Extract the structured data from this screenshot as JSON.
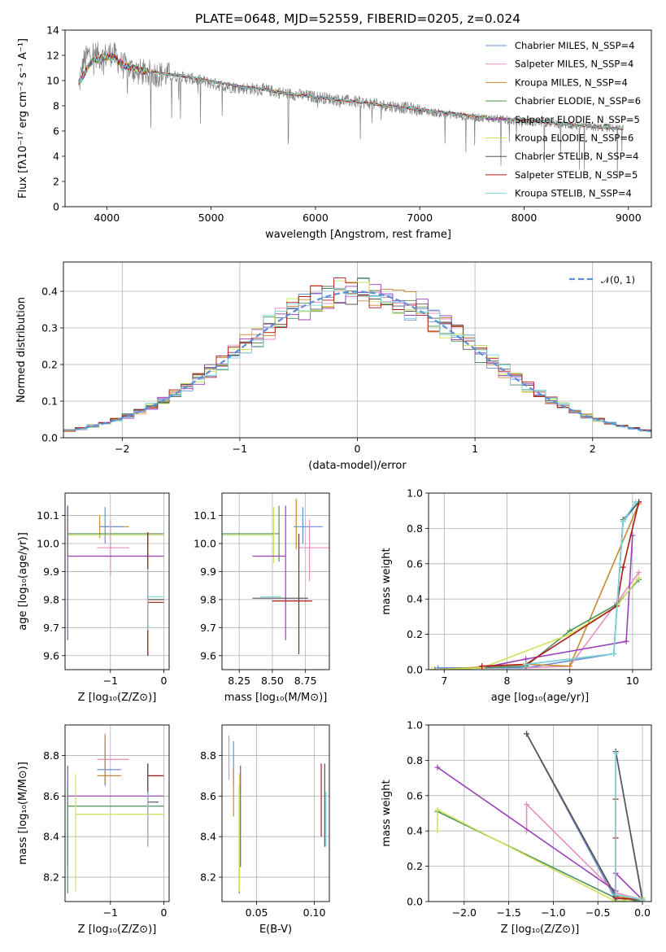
{
  "figure": {
    "title": "PLATE=0648, MJD=52559, FIBERID=0205, z=0.024"
  },
  "chart_data": [
    {
      "id": "spectrum",
      "type": "line",
      "xlabel": "wavelength [Angstrom, rest frame]",
      "ylabel": "Flux [fλ10⁻¹⁷ erg cm⁻² s⁻¹ A⁻¹]",
      "xlim": [
        3600,
        9220
      ],
      "ylim": [
        0,
        14
      ],
      "xticks": [
        4000,
        5000,
        6000,
        7000,
        8000,
        9000
      ],
      "yticks": [
        0,
        2,
        4,
        6,
        8,
        10,
        12,
        14
      ],
      "grid": false,
      "legend_position": "top-right",
      "data_trace": {
        "color": "#808080",
        "x": [
          3730,
          3780,
          3850,
          3950,
          4050,
          4150,
          4300,
          4500,
          4700,
          4900,
          5100,
          5300,
          5500,
          5700,
          5900,
          6100,
          6300,
          6500,
          6700,
          6900,
          7100,
          7300,
          7500,
          7700,
          7900,
          8100,
          8300,
          8500,
          8700,
          8900
        ],
        "y": [
          9.5,
          11.5,
          12.3,
          11.8,
          12.2,
          11.2,
          10.7,
          10.5,
          10.3,
          10.0,
          9.6,
          9.4,
          9.3,
          9.0,
          8.8,
          8.6,
          8.4,
          8.2,
          8.0,
          7.8,
          7.5,
          7.3,
          7.1,
          7.0,
          6.8,
          6.7,
          6.6,
          6.4,
          6.3,
          6.2
        ]
      },
      "series": [
        {
          "name": "Chabrier MILES, N_SSP=4",
          "color": "#6a8fd8"
        },
        {
          "name": "Salpeter MILES, N_SSP=4",
          "color": "#e68fbf"
        },
        {
          "name": "Kroupa MILES, N_SSP=4",
          "color": "#c88a30"
        },
        {
          "name": "Chabrier ELODIE, N_SSP=6",
          "color": "#4f8f5a"
        },
        {
          "name": "Salpeter ELODIE, N_SSP=5",
          "color": "#9b3fb8"
        },
        {
          "name": "Kroupa ELODIE, N_SSP=6",
          "color": "#cfe35a"
        },
        {
          "name": "Chabrier STELIB, N_SSP=4",
          "color": "#555555"
        },
        {
          "name": "Salpeter STELIB, N_SSP=5",
          "color": "#b01818"
        },
        {
          "name": "Kroupa STELIB, N_SSP=4",
          "color": "#7fd8e0"
        }
      ],
      "model_x": [
        3730,
        3850,
        3950,
        4050,
        4150,
        4300,
        4500,
        4700,
        4900,
        5100,
        5300,
        5500,
        5700,
        5900,
        6100,
        6300,
        6500,
        6700,
        6900,
        7100,
        7300,
        7500,
        7700,
        7900,
        8100,
        8300,
        8500,
        8700,
        8900
      ],
      "model_y": [
        9.8,
        11.5,
        11.8,
        11.9,
        11.3,
        10.8,
        10.6,
        10.4,
        10.1,
        9.8,
        9.5,
        9.3,
        9.0,
        8.8,
        8.6,
        8.4,
        8.2,
        8.0,
        7.8,
        7.6,
        7.4,
        7.2,
        7.0,
        6.9,
        6.8,
        6.6,
        6.5,
        6.3,
        6.2
      ]
    },
    {
      "id": "residuals",
      "type": "line",
      "xlabel": "(data-model)/error",
      "ylabel": "Normed distribution",
      "xlim": [
        -2.5,
        2.5
      ],
      "ylim": [
        0,
        0.48
      ],
      "xticks": [
        -2,
        -1,
        0,
        1,
        2
      ],
      "yticks": [
        0.0,
        0.1,
        0.2,
        0.3,
        0.4
      ],
      "grid": true,
      "legend_position": "top-right",
      "reference": {
        "name": "𝒩(0, 1)",
        "color": "#5b8fd6"
      },
      "bin_width": 0.1
    },
    {
      "id": "age-vs-Z",
      "type": "scatter",
      "xlabel": "Z [log₁₀(Z/Z⊙)]",
      "ylabel": "age  [log₁₀(age/yr)]",
      "xlim": [
        -1.85,
        0.1
      ],
      "ylim": [
        9.55,
        10.18
      ],
      "xticks": [
        -1,
        0
      ],
      "yticks": [
        9.6,
        9.7,
        9.8,
        9.9,
        10.0,
        10.1
      ],
      "grid": true,
      "points": [
        {
          "x": -1.2,
          "y": 10.06,
          "xerr": [
            0.0,
            0.55
          ],
          "yerr": [
            0.04,
            0.04
          ],
          "color": "#c88a30"
        },
        {
          "x": -1.1,
          "y": 10.06,
          "xerr": [
            0.1,
            0.35
          ],
          "yerr": [
            0.06,
            0.07
          ],
          "color": "#6a8fd8"
        },
        {
          "x": -1.8,
          "y": 10.035,
          "xerr": [
            0.0,
            1.8
          ],
          "yerr": [
            0.08,
            0.1
          ],
          "color": "#4f8f5a"
        },
        {
          "x": -1.8,
          "y": 10.03,
          "xerr": [
            0.0,
            1.8
          ],
          "yerr": [
            0.07,
            0.07
          ],
          "color": "#cfe35a"
        },
        {
          "x": -1.0,
          "y": 9.985,
          "xerr": [
            0.25,
            0.35
          ],
          "yerr": [
            0.1,
            0.1
          ],
          "color": "#e68fbf"
        },
        {
          "x": -1.8,
          "y": 9.955,
          "xerr": [
            0.0,
            1.8
          ],
          "yerr": [
            0.3,
            0.18
          ],
          "color": "#9b3fb8"
        },
        {
          "x": -0.3,
          "y": 9.8,
          "xerr": [
            0.0,
            0.3
          ],
          "yerr": [
            0.2,
            0.24
          ],
          "color": "#555555"
        },
        {
          "x": -0.3,
          "y": 9.79,
          "xerr": [
            0.0,
            0.3
          ],
          "yerr": [
            0.19,
            0.25
          ],
          "color": "#b01818"
        },
        {
          "x": -0.3,
          "y": 9.81,
          "xerr": [
            0.0,
            0.3
          ],
          "yerr": [
            0.12,
            0.1
          ],
          "color": "#7fd8e0"
        }
      ]
    },
    {
      "id": "age-vs-mass",
      "type": "scatter",
      "xlabel": "mass [log₁₀(M/M⊙)]",
      "ylabel": "",
      "xlim": [
        8.12,
        8.93
      ],
      "ylim": [
        9.55,
        10.18
      ],
      "xticks": [
        8.25,
        8.5,
        8.75
      ],
      "yticks": [
        9.6,
        9.7,
        9.8,
        9.9,
        10.0,
        10.1
      ],
      "grid": true,
      "points": [
        {
          "x": 8.68,
          "y": 10.06,
          "xerr": [
            0.0,
            0.0
          ],
          "yerr": [
            0.08,
            0.1
          ],
          "color": "#c88a30"
        },
        {
          "x": 8.73,
          "y": 10.06,
          "xerr": [
            0.07,
            0.15
          ],
          "yerr": [
            0.06,
            0.07
          ],
          "color": "#6a8fd8"
        },
        {
          "x": 8.55,
          "y": 10.035,
          "xerr": [
            0.45,
            0.0
          ],
          "yerr": [
            0.1,
            0.1
          ],
          "color": "#4f8f5a"
        },
        {
          "x": 8.51,
          "y": 10.03,
          "xerr": [
            0.4,
            0.0
          ],
          "yerr": [
            0.1,
            0.1
          ],
          "color": "#cfe35a"
        },
        {
          "x": 8.78,
          "y": 9.985,
          "xerr": [
            0.08,
            0.15
          ],
          "yerr": [
            0.12,
            0.1
          ],
          "color": "#e68fbf"
        },
        {
          "x": 8.6,
          "y": 9.955,
          "xerr": [
            0.25,
            0.0
          ],
          "yerr": [
            0.3,
            0.18
          ],
          "color": "#9b3fb8"
        },
        {
          "x": 8.57,
          "y": 9.805,
          "xerr": [
            0.22,
            0.2
          ],
          "yerr": [
            0.0,
            0.0
          ],
          "color": "#555555"
        },
        {
          "x": 8.7,
          "y": 9.795,
          "xerr": [
            0.2,
            0.1
          ],
          "yerr": [
            0.19,
            0.24
          ],
          "color": "#b01818"
        },
        {
          "x": 8.51,
          "y": 9.81,
          "xerr": [
            0.1,
            0.06
          ],
          "yerr": [
            0.0,
            0.0
          ],
          "color": "#7fd8e0"
        }
      ]
    },
    {
      "id": "mass-weight-vs-age",
      "type": "line",
      "xlabel": "age  [log₁₀(age/yr)]",
      "ylabel": "mass weight",
      "xlim": [
        6.75,
        10.3
      ],
      "ylim": [
        0,
        1
      ],
      "xticks": [
        7,
        8,
        9,
        10
      ],
      "yticks": [
        0.0,
        0.2,
        0.4,
        0.6,
        0.8,
        1.0
      ],
      "grid": true,
      "series": [
        {
          "color": "#6a8fd8",
          "x": [
            6.9,
            8.3,
            9.7,
            9.85,
            10.1
          ],
          "y": [
            0.01,
            0.01,
            0.09,
            0.84,
            0.95
          ]
        },
        {
          "color": "#e68fbf",
          "x": [
            8.3,
            9.0,
            9.75,
            10.1
          ],
          "y": [
            0.01,
            0.02,
            0.38,
            0.55
          ]
        },
        {
          "color": "#c88a30",
          "x": [
            6.85,
            8.3,
            9.0,
            10.1
          ],
          "y": [
            0.0,
            0.03,
            0.02,
            0.94
          ]
        },
        {
          "color": "#4f8f5a",
          "x": [
            6.85,
            7.6,
            8.3,
            9.0,
            9.75,
            10.1
          ],
          "y": [
            0.0,
            0.01,
            0.02,
            0.22,
            0.37,
            0.51
          ]
        },
        {
          "color": "#9b3fb8",
          "x": [
            7.6,
            8.3,
            9.9,
            10.0
          ],
          "y": [
            0.01,
            0.06,
            0.16,
            0.76
          ]
        },
        {
          "color": "#cfe35a",
          "x": [
            6.8,
            7.6,
            9.0,
            9.75,
            10.1
          ],
          "y": [
            0.0,
            0.01,
            0.2,
            0.36,
            0.52
          ]
        },
        {
          "color": "#555555",
          "x": [
            8.3,
            9.7,
            9.85,
            10.1
          ],
          "y": [
            0.03,
            0.09,
            0.85,
            0.95
          ]
        },
        {
          "color": "#b01818",
          "x": [
            7.6,
            8.3,
            9.75,
            9.85,
            10.1
          ],
          "y": [
            0.02,
            0.03,
            0.36,
            0.58,
            0.95
          ]
        },
        {
          "color": "#7fd8e0",
          "x": [
            8.3,
            9.7,
            9.85,
            10.05
          ],
          "y": [
            0.03,
            0.09,
            0.84,
            0.95
          ]
        }
      ]
    },
    {
      "id": "mass-vs-Z",
      "type": "scatter",
      "xlabel": "Z [log₁₀(Z/Z⊙)]",
      "ylabel": "mass [log₁₀(M/M⊙)]",
      "xlim": [
        -1.85,
        0.1
      ],
      "ylim": [
        8.08,
        8.95
      ],
      "xticks": [
        -1,
        0
      ],
      "yticks": [
        8.2,
        8.4,
        8.6,
        8.8
      ],
      "grid": true,
      "points": [
        {
          "x": -1.1,
          "y": 8.78,
          "xerr": [
            0.15,
            0.45
          ],
          "yerr": [
            0.12,
            0.13
          ],
          "color": "#e68fbf"
        },
        {
          "x": -1.1,
          "y": 8.73,
          "xerr": [
            0.15,
            0.3
          ],
          "yerr": [
            0.08,
            0.14
          ],
          "color": "#6a8fd8"
        },
        {
          "x": -1.1,
          "y": 8.7,
          "xerr": [
            0.15,
            0.3
          ],
          "yerr": [
            0.04,
            0.2
          ],
          "color": "#c88a30"
        },
        {
          "x": -0.3,
          "y": 8.7,
          "xerr": [
            0.0,
            0.3
          ],
          "yerr": [
            0.3,
            0.06
          ],
          "color": "#b01818"
        },
        {
          "x": -1.8,
          "y": 8.6,
          "xerr": [
            0.0,
            1.8
          ],
          "yerr": [
            0.35,
            0.15
          ],
          "color": "#9b3fb8"
        },
        {
          "x": -0.3,
          "y": 8.57,
          "xerr": [
            0.0,
            0.2
          ],
          "yerr": [
            0.22,
            0.19
          ],
          "color": "#555555"
        },
        {
          "x": -1.8,
          "y": 8.55,
          "xerr": [
            0.0,
            1.8
          ],
          "yerr": [
            0.43,
            0.1
          ],
          "color": "#4f8f5a"
        },
        {
          "x": -1.65,
          "y": 8.51,
          "xerr": [
            0.0,
            1.65
          ],
          "yerr": [
            0.38,
            0.2
          ],
          "color": "#cfe35a"
        },
        {
          "x": -0.3,
          "y": 8.5,
          "xerr": [
            0.0,
            0.0
          ],
          "yerr": [
            0.15,
            0.12
          ],
          "color": "#7fd8e0"
        }
      ]
    },
    {
      "id": "mass-vs-EBV",
      "type": "scatter",
      "xlabel": "E(B-V)",
      "ylabel": "",
      "xlim": [
        0.02,
        0.113
      ],
      "ylim": [
        8.08,
        8.95
      ],
      "xticks": [
        0.05,
        0.1
      ],
      "yticks": [
        8.2,
        8.4,
        8.6,
        8.8
      ],
      "grid": true,
      "points": [
        {
          "x": 0.026,
          "y": 8.78,
          "xerr": [
            0.0,
            0.0
          ],
          "yerr": [
            0.1,
            0.12
          ],
          "color": "#e68fbf"
        },
        {
          "x": 0.03,
          "y": 8.73,
          "xerr": [
            0.0,
            0.0
          ],
          "yerr": [
            0.08,
            0.14
          ],
          "color": "#6a8fd8"
        },
        {
          "x": 0.03,
          "y": 8.7,
          "xerr": [
            0.0,
            0.0
          ],
          "yerr": [
            0.2,
            0.04
          ],
          "color": "#c88a30"
        },
        {
          "x": 0.036,
          "y": 8.6,
          "xerr": [
            0.0,
            0.0
          ],
          "yerr": [
            0.35,
            0.15
          ],
          "color": "#9b3fb8"
        },
        {
          "x": 0.035,
          "y": 8.55,
          "xerr": [
            0.0,
            0.0
          ],
          "yerr": [
            0.43,
            0.1
          ],
          "color": "#4f8f5a"
        },
        {
          "x": 0.035,
          "y": 8.51,
          "xerr": [
            0.0,
            0.0
          ],
          "yerr": [
            0.38,
            0.2
          ],
          "color": "#cfe35a"
        },
        {
          "x": 0.106,
          "y": 8.7,
          "xerr": [
            0.0,
            0.0
          ],
          "yerr": [
            0.3,
            0.06
          ],
          "color": "#b01818"
        },
        {
          "x": 0.109,
          "y": 8.57,
          "xerr": [
            0.0,
            0.0
          ],
          "yerr": [
            0.22,
            0.19
          ],
          "color": "#555555"
        },
        {
          "x": 0.11,
          "y": 8.5,
          "xerr": [
            0.0,
            0.0
          ],
          "yerr": [
            0.15,
            0.12
          ],
          "color": "#7fd8e0"
        }
      ]
    },
    {
      "id": "mass-weight-vs-Z",
      "type": "line",
      "xlabel": "Z [log₁₀(Z/Z⊙)]",
      "ylabel": "mass weight",
      "xlim": [
        -2.4,
        0.1
      ],
      "ylim": [
        0,
        1
      ],
      "xticks": [
        -2.0,
        -1.5,
        -1.0,
        -0.5,
        0.0
      ],
      "yticks": [
        0.0,
        0.2,
        0.4,
        0.6,
        0.8,
        1.0
      ],
      "grid": true,
      "series": [
        {
          "color": "#6a8fd8",
          "x": [
            -1.3,
            -0.3,
            -0.3,
            0.0
          ],
          "y": [
            0.95,
            0.01,
            0.85,
            0.02
          ]
        },
        {
          "color": "#e68fbf",
          "x": [
            -1.3,
            -1.3,
            -0.3,
            0.0
          ],
          "y": [
            0.4,
            0.55,
            0.05,
            0.01
          ]
        },
        {
          "color": "#c88a30",
          "x": [
            -1.3,
            -0.3,
            0.0
          ],
          "y": [
            0.95,
            0.03,
            0.01
          ]
        },
        {
          "color": "#4f8f5a",
          "x": [
            -2.3,
            -0.3,
            0.0
          ],
          "y": [
            0.51,
            0.02,
            0.0
          ]
        },
        {
          "color": "#9b3fb8",
          "x": [
            -2.3,
            -0.3,
            -0.3,
            0.0
          ],
          "y": [
            0.76,
            0.06,
            0.16,
            0.01
          ]
        },
        {
          "color": "#cfe35a",
          "x": [
            -2.3,
            -2.3,
            -0.3,
            0.0
          ],
          "y": [
            0.4,
            0.52,
            0.0,
            0.02
          ]
        },
        {
          "color": "#555555",
          "x": [
            -1.3,
            -0.3,
            -0.3,
            0.0
          ],
          "y": [
            0.95,
            0.03,
            0.85,
            0.01
          ]
        },
        {
          "color": "#b01818",
          "x": [
            -0.3,
            -0.3,
            -0.3,
            0.0
          ],
          "y": [
            0.58,
            0.36,
            0.02,
            0.01
          ]
        },
        {
          "color": "#7fd8e0",
          "x": [
            -0.3,
            -0.3,
            0.0
          ],
          "y": [
            0.84,
            0.04,
            0.01
          ]
        }
      ]
    }
  ]
}
